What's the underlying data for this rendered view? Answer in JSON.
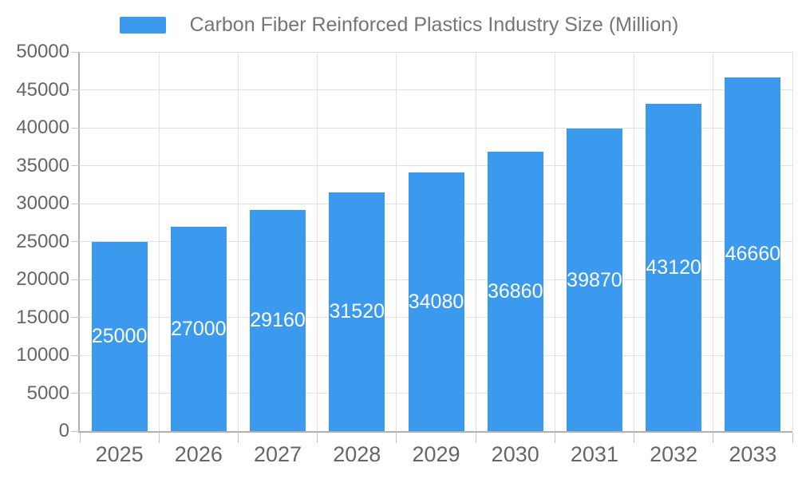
{
  "chart_data": {
    "type": "bar",
    "title": "Carbon Fiber Reinforced Plastics Industry Size (Million)",
    "categories": [
      "2025",
      "2026",
      "2027",
      "2028",
      "2029",
      "2030",
      "2031",
      "2032",
      "2033"
    ],
    "values": [
      25000,
      27000,
      29160,
      31520,
      34080,
      36860,
      39870,
      43120,
      46660
    ],
    "bar_value_labels": [
      "25000",
      "27000",
      "29160",
      "31520",
      "34080",
      "36860",
      "39870",
      "43120",
      "46660"
    ],
    "ylim": [
      0,
      50000
    ],
    "ytick_interval": 5000,
    "ytick_labels": [
      "0",
      "5000",
      "10000",
      "15000",
      "20000",
      "25000",
      "30000",
      "35000",
      "40000",
      "45000",
      "50000"
    ],
    "grid": true,
    "legend_position": "top-center",
    "bar_labels_visible": true,
    "colors": {
      "bar": "#3B9AEE",
      "bar_label_text": "#FFFFFF",
      "grid_line": "#E2E2E2",
      "axis_line": "#B0B0B0",
      "tick_mark": "#C4C4C4",
      "axis_label_text": "#666666",
      "legend_text": "#757575",
      "background": "#FFFFFF"
    }
  }
}
